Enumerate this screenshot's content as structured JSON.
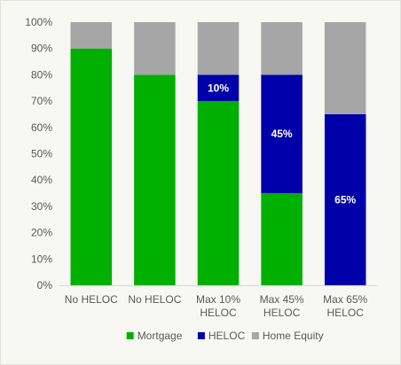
{
  "chart_data": {
    "type": "bar",
    "stacked": true,
    "categories": [
      [
        "No HELOC"
      ],
      [
        "No HELOC"
      ],
      [
        "Max 10%",
        "HELOC"
      ],
      [
        "Max 45%",
        "HELOC"
      ],
      [
        "Max 65%",
        "HELOC"
      ]
    ],
    "series": [
      {
        "name": "Mortgage",
        "color": "#00b000",
        "values": [
          90,
          80,
          70,
          35,
          0
        ],
        "labels": [
          "",
          "",
          "",
          "",
          ""
        ]
      },
      {
        "name": "HELOC",
        "color": "#0000aa",
        "values": [
          0,
          0,
          10,
          45,
          65
        ],
        "labels": [
          "",
          "",
          "10%",
          "45%",
          "65%"
        ]
      },
      {
        "name": "Home Equity",
        "color": "#a6a6a6",
        "values": [
          10,
          20,
          20,
          20,
          35
        ],
        "labels": [
          "",
          "",
          "",
          "",
          ""
        ]
      }
    ],
    "yticks": [
      "0%",
      "10%",
      "20%",
      "30%",
      "40%",
      "50%",
      "60%",
      "70%",
      "80%",
      "90%",
      "100%"
    ],
    "ylim": [
      0,
      100
    ],
    "grid": false,
    "legend_position": "bottom"
  }
}
